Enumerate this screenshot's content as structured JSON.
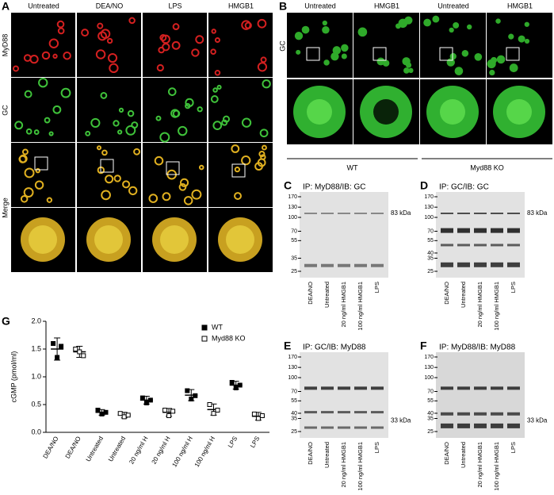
{
  "panels": {
    "A": {
      "letter": "A",
      "columns": [
        "Untreated",
        "DEA/NO",
        "LPS",
        "HMGB1"
      ],
      "rows": [
        "MyD88",
        "GC",
        "Merge"
      ]
    },
    "B": {
      "letter": "B",
      "columns": [
        "Untreated",
        "HMGB1",
        "Untreated",
        "HMGB1"
      ],
      "rows": [
        "GC"
      ],
      "groups": [
        "WT",
        "Myd88 KO"
      ]
    },
    "blots": [
      {
        "letter": "C",
        "title": "IP: MyD88/IB: GC",
        "markers": [
          170,
          130,
          100,
          70,
          55,
          35,
          25
        ],
        "band_label": "83 kDa",
        "lanes": [
          "DEA/NO",
          "Untreated",
          "20 ng/ml HMGB1",
          "100 ng/ml HMGB1",
          "LPS"
        ]
      },
      {
        "letter": "D",
        "title": "IP:  GC/IB: GC",
        "markers": [
          170,
          130,
          100,
          70,
          55,
          40,
          35,
          25
        ],
        "band_label": "83 kDa",
        "lanes": [
          "DEA/NO",
          "Untreated",
          "20 ng/ml HMGB1",
          "100 ng/ml HMGB1",
          "LPS"
        ]
      },
      {
        "letter": "E",
        "title": "IP: GC/IB: MyD88",
        "markers": [
          170,
          130,
          100,
          70,
          55,
          40,
          35,
          25
        ],
        "band_label": "33 kDa",
        "lanes": [
          "DEA/NO",
          "Untreated",
          "20 ng/ml HMGB1",
          "100 ng/ml HMGB1",
          "LPS"
        ]
      },
      {
        "letter": "F",
        "title": "IP: MyD88/IB: MyD88",
        "markers": [
          170,
          130,
          100,
          70,
          55,
          40,
          35,
          25
        ],
        "band_label": "33 kDa",
        "lanes": [
          "DEA/NO",
          "Untreated",
          "20 ng/ml HMGB1",
          "100 ng/ml HMGB1",
          "LPS"
        ]
      }
    ]
  },
  "chart_data": {
    "type": "dotplot",
    "letter": "G",
    "y_label": "cGMP (pmol/ml)",
    "categories": [
      "DEA/NO",
      "DEA/NO",
      "Untreated",
      "Untreated",
      "20 ng/ml H",
      "20 ng/ml H",
      "100 ng/ml H",
      "100 ng/ml H",
      "LPS",
      "LPS"
    ],
    "ylim": [
      0,
      2
    ],
    "yticks": [
      {
        "value": 0,
        "label": "0.0"
      },
      0.5,
      {
        "value": 1,
        "label": "1.0"
      },
      1.5,
      {
        "value": 2,
        "label": "2.0"
      }
    ],
    "legend": "upper right",
    "series": [
      {
        "name": "WT",
        "color": "#000000",
        "values": [
          1.5,
          null,
          0.36,
          null,
          0.58,
          null,
          0.67,
          null,
          0.85,
          null
        ],
        "errors": [
          0.2,
          null,
          0.05,
          null,
          0.07,
          null,
          0.1,
          null,
          0.07,
          null
        ],
        "points": [
          [
            1.6,
            1.35,
            1.55
          ],
          null,
          [
            0.4,
            0.33,
            0.36
          ],
          null,
          [
            0.62,
            0.53,
            0.58
          ],
          null,
          [
            0.75,
            0.6,
            0.66
          ],
          null,
          [
            0.9,
            0.8,
            0.85
          ],
          null
        ]
      },
      {
        "name": "Myd88 KO",
        "color": "#ffffff",
        "values": [
          null,
          1.45,
          null,
          0.31,
          null,
          0.36,
          null,
          0.41,
          null,
          0.29
        ],
        "errors": [
          null,
          0.1,
          null,
          0.05,
          null,
          0.07,
          null,
          0.1,
          null,
          0.07
        ],
        "points": [
          null,
          [
            1.5,
            1.45,
            1.38
          ],
          null,
          [
            0.34,
            0.28,
            0.31
          ],
          null,
          [
            0.4,
            0.3,
            0.38
          ],
          null,
          [
            0.5,
            0.34,
            0.4
          ],
          null,
          [
            0.33,
            0.25,
            0.3
          ]
        ]
      }
    ]
  }
}
